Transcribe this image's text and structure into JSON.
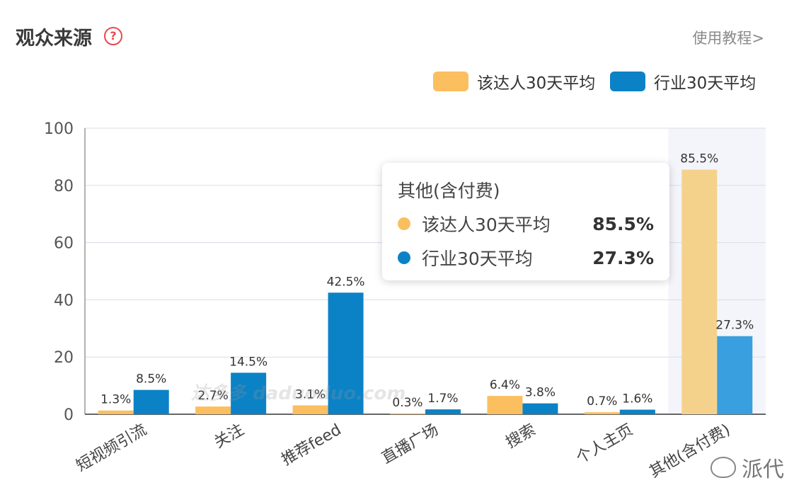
{
  "header": {
    "title": "观众来源",
    "help": "?",
    "tutorial": "使用教程>"
  },
  "legend": [
    {
      "label": "该达人30天平均",
      "color": "#fbbf5f"
    },
    {
      "label": "行业30天平均",
      "color": "#0b82c6"
    }
  ],
  "tooltip": {
    "title": "其他(含付费)",
    "rows": [
      {
        "name": "该达人30天平均",
        "value": "85.5%",
        "color": "#fbbf5f"
      },
      {
        "name": "行业30天平均",
        "value": "27.3%",
        "color": "#0b82c6"
      }
    ]
  },
  "watermark": "派代",
  "site_watermark": "达多多 daduoduo.com",
  "chart_data": {
    "type": "bar",
    "categories": [
      "短视频引流",
      "关注",
      "推荐feed",
      "直播广场",
      "搜索",
      "个人主页",
      "其他(含付费)"
    ],
    "series": [
      {
        "name": "该达人30天平均",
        "values": [
          1.3,
          2.7,
          3.1,
          0.3,
          6.4,
          0.7,
          85.5
        ],
        "labels": [
          "1.3%",
          "2.7%",
          "3.1%",
          "0.3%",
          "6.4%",
          "0.7%",
          "85.5%"
        ],
        "color": "#fbbf5f",
        "highlight_color": "#f5d28c"
      },
      {
        "name": "行业30天平均",
        "values": [
          8.5,
          14.5,
          42.5,
          1.7,
          3.8,
          1.6,
          27.3
        ],
        "labels": [
          "8.5%",
          "14.5%",
          "42.5%",
          "1.7%",
          "3.8%",
          "1.6%",
          "27.3%"
        ],
        "color": "#0b82c6",
        "highlight_color": "#3a9fdf"
      }
    ],
    "ylim": [
      0,
      100
    ],
    "yticks": [
      "0",
      "20",
      "40",
      "60",
      "80",
      "100"
    ],
    "highlighted_category": 6,
    "grid": true
  }
}
